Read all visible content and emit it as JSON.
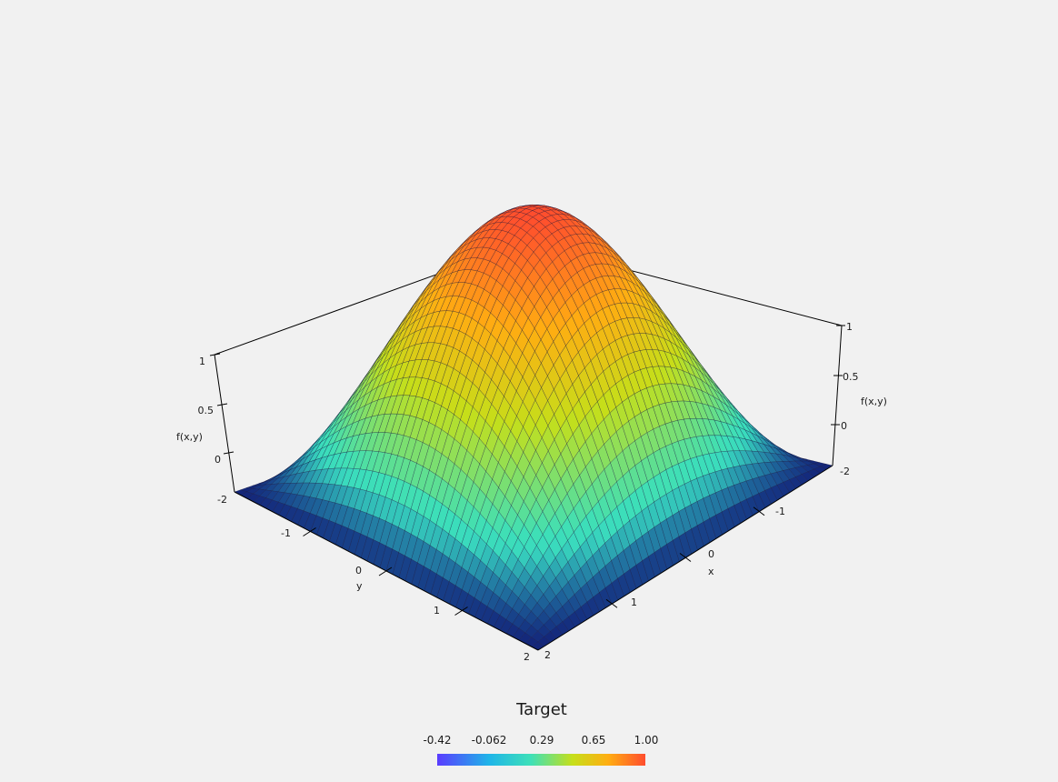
{
  "chart_data": {
    "type": "surface3d",
    "function_label": "f(x,y)",
    "x_axis": {
      "label": "x",
      "range": [
        -2,
        2
      ],
      "ticks": [
        -2,
        -1,
        0,
        1,
        2
      ]
    },
    "y_axis": {
      "label": "y",
      "range": [
        -2,
        2
      ],
      "ticks": [
        -2,
        -1,
        0,
        1,
        2
      ]
    },
    "z_axis": {
      "label": "f(x,y)",
      "range": [
        0,
        1
      ],
      "ticks": [
        0,
        0.5,
        1
      ]
    },
    "z_tick_labels": [
      "0",
      "0.5",
      "1"
    ],
    "x_tick_labels": [
      "-2",
      "-1",
      "0",
      "1",
      "2"
    ],
    "y_tick_labels": [
      "-2",
      "-1",
      "0",
      "1",
      "2"
    ],
    "surface": {
      "description_formula": "z = cos(pi*x/4) * cos(pi*y/4)",
      "peak": 1.0,
      "corner_value": 0.0,
      "grid": 48
    },
    "colorbar": {
      "title": "Target",
      "tick_labels": [
        "-0.42",
        "-0.062",
        "0.29",
        "0.65",
        "1.00"
      ],
      "range": [
        -0.42,
        1.0
      ],
      "colormap": [
        "#5a3cff",
        "#1fb5e8",
        "#3ee0b8",
        "#c6df1a",
        "#ffae12",
        "#ff4d2e"
      ]
    },
    "grid": false,
    "legend_placement": "bottom-center"
  }
}
